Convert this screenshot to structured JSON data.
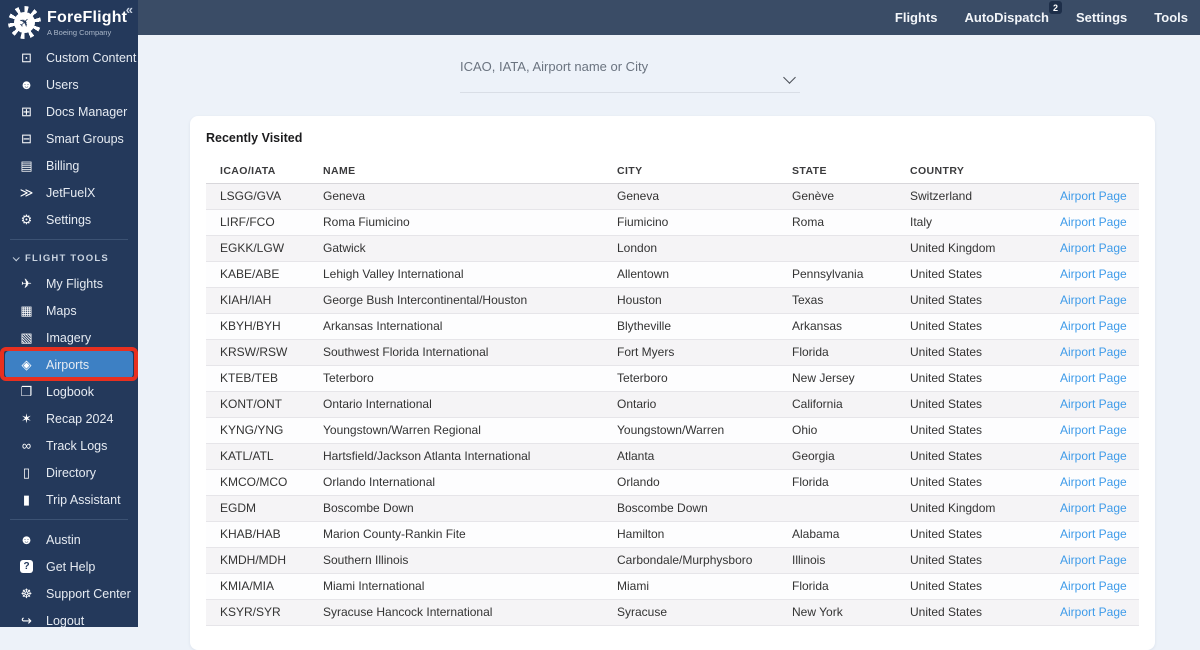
{
  "topbar": {
    "nav": [
      {
        "key": "flights",
        "label": "Flights"
      },
      {
        "key": "autodispatch",
        "label": "AutoDispatch",
        "badge": "2"
      },
      {
        "key": "settings",
        "label": "Settings"
      },
      {
        "key": "tools",
        "label": "Tools"
      }
    ]
  },
  "sidebar": {
    "logo_title": "ForeFlight",
    "logo_subtitle": "A Boeing Company",
    "logo_plane_glyph": "✈",
    "collapse_glyph": "«",
    "admin_items": [
      {
        "key": "custom-content",
        "icon": "screen-icon",
        "glyph": "⊡",
        "label": "Custom Content"
      },
      {
        "key": "users",
        "icon": "users-icon",
        "glyph": "☻",
        "label": "Users"
      },
      {
        "key": "docs-manager",
        "icon": "folder-plus-icon",
        "glyph": "⊞",
        "label": "Docs Manager"
      },
      {
        "key": "smart-groups",
        "icon": "smart-screen-icon",
        "glyph": "⊟",
        "label": "Smart Groups"
      },
      {
        "key": "billing",
        "icon": "credit-card-icon",
        "glyph": "▤",
        "label": "Billing"
      },
      {
        "key": "jetfuelx",
        "icon": "double-chevron-icon",
        "glyph": "≫",
        "label": "JetFuelX"
      },
      {
        "key": "settings",
        "icon": "gear-icon",
        "glyph": "⚙",
        "label": "Settings"
      }
    ],
    "section_header": "FLIGHT TOOLS",
    "flight_items": [
      {
        "key": "my-flights",
        "icon": "takeoff-icon",
        "glyph": "✈",
        "label": "My Flights"
      },
      {
        "key": "maps",
        "icon": "map-icon",
        "glyph": "▦",
        "label": "Maps"
      },
      {
        "key": "imagery",
        "icon": "image-icon",
        "glyph": "▧",
        "label": "Imagery"
      },
      {
        "key": "airports",
        "icon": "diamond-airport-icon",
        "glyph": "◈",
        "label": "Airports",
        "active": true
      },
      {
        "key": "logbook",
        "icon": "book-icon",
        "glyph": "❐",
        "label": "Logbook"
      },
      {
        "key": "recap-2024",
        "icon": "celebration-icon",
        "glyph": "✶",
        "label": "Recap 2024"
      },
      {
        "key": "track-logs",
        "icon": "voicemail-icon",
        "glyph": "∞",
        "label": "Track Logs"
      },
      {
        "key": "directory",
        "icon": "notebook-icon",
        "glyph": "▯",
        "label": "Directory"
      },
      {
        "key": "trip-assistant",
        "icon": "luggage-icon",
        "glyph": "▮",
        "label": "Trip Assistant"
      }
    ],
    "bottom_items": [
      {
        "key": "austin",
        "icon": "person-icon",
        "glyph": "☻",
        "label": "Austin"
      },
      {
        "key": "get-help",
        "icon": "question-icon",
        "glyph": "?",
        "boxed": true,
        "label": "Get Help"
      },
      {
        "key": "support-center",
        "icon": "lifering-icon",
        "glyph": "☸",
        "label": "Support Center"
      },
      {
        "key": "logout",
        "icon": "logout-icon",
        "glyph": "↪",
        "label": "Logout"
      }
    ]
  },
  "search": {
    "placeholder": "ICAO, IATA, Airport name or City"
  },
  "main": {
    "section_title": "Recently Visited",
    "table": {
      "headers": [
        "ICAO/IATA",
        "NAME",
        "CITY",
        "STATE",
        "COUNTRY"
      ],
      "link_label": "Airport Page",
      "rows": [
        {
          "icao": "LSGG/GVA",
          "name": "Geneva",
          "city": "Geneva",
          "state": "Genève",
          "country": "Switzerland"
        },
        {
          "icao": "LIRF/FCO",
          "name": "Roma Fiumicino",
          "city": "Fiumicino",
          "state": "Roma",
          "country": "Italy"
        },
        {
          "icao": "EGKK/LGW",
          "name": "Gatwick",
          "city": "London",
          "state": "",
          "country": "United Kingdom"
        },
        {
          "icao": "KABE/ABE",
          "name": "Lehigh Valley International",
          "city": "Allentown",
          "state": "Pennsylvania",
          "country": "United States"
        },
        {
          "icao": "KIAH/IAH",
          "name": "George Bush Intercontinental/Houston",
          "city": "Houston",
          "state": "Texas",
          "country": "United States"
        },
        {
          "icao": "KBYH/BYH",
          "name": "Arkansas International",
          "city": "Blytheville",
          "state": "Arkansas",
          "country": "United States"
        },
        {
          "icao": "KRSW/RSW",
          "name": "Southwest Florida International",
          "city": "Fort Myers",
          "state": "Florida",
          "country": "United States"
        },
        {
          "icao": "KTEB/TEB",
          "name": "Teterboro",
          "city": "Teterboro",
          "state": "New Jersey",
          "country": "United States"
        },
        {
          "icao": "KONT/ONT",
          "name": "Ontario International",
          "city": "Ontario",
          "state": "California",
          "country": "United States"
        },
        {
          "icao": "KYNG/YNG",
          "name": "Youngstown/Warren Regional",
          "city": "Youngstown/Warren",
          "state": "Ohio",
          "country": "United States"
        },
        {
          "icao": "KATL/ATL",
          "name": "Hartsfield/Jackson Atlanta International",
          "city": "Atlanta",
          "state": "Georgia",
          "country": "United States"
        },
        {
          "icao": "KMCO/MCO",
          "name": "Orlando International",
          "city": "Orlando",
          "state": "Florida",
          "country": "United States"
        },
        {
          "icao": "EGDM",
          "name": "Boscombe Down",
          "city": "Boscombe Down",
          "state": "",
          "country": "United Kingdom"
        },
        {
          "icao": "KHAB/HAB",
          "name": "Marion County-Rankin Fite",
          "city": "Hamilton",
          "state": "Alabama",
          "country": "United States"
        },
        {
          "icao": "KMDH/MDH",
          "name": "Southern Illinois",
          "city": "Carbondale/Murphysboro",
          "state": "Illinois",
          "country": "United States"
        },
        {
          "icao": "KMIA/MIA",
          "name": "Miami International",
          "city": "Miami",
          "state": "Florida",
          "country": "United States"
        },
        {
          "icao": "KSYR/SYR",
          "name": "Syracuse Hancock International",
          "city": "Syracuse",
          "state": "New York",
          "country": "United States"
        }
      ]
    }
  },
  "colors": {
    "sidebar_bg": "#24395b",
    "topbar_bg": "#3a4c66",
    "active_item_blue": "#3d80c4",
    "annotation_red": "#e8301f",
    "link_blue": "#3e9be9"
  }
}
